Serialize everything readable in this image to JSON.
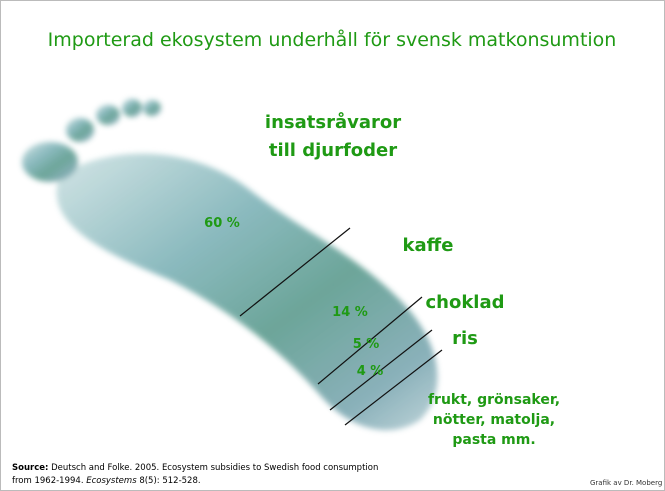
{
  "title": "Importerad ekosystem underhåll för svensk matkonsumtion",
  "labels": {
    "feed": [
      "insatsråvaror",
      "till djurfoder"
    ],
    "feed_share": "60 %",
    "coffee": "kaffe",
    "coffee_share": "14 %",
    "chocolate": "choklad",
    "chocolate_share": "5 %",
    "rice": "ris",
    "rice_share": "4 %",
    "other": [
      "frukt, grönsaker,",
      "nötter, matolja,",
      "pasta mm."
    ]
  },
  "source": {
    "label": "Source:",
    "line1": " Deutsch and Folke. 2005. Ecosystem subsidies to Swedish food consumption",
    "line2_start": "from 1962-1994. ",
    "journal": "Ecosystems",
    "line2_end": " 8(5): 512-528."
  },
  "credit": "Grafik av Dr. Moberg"
}
